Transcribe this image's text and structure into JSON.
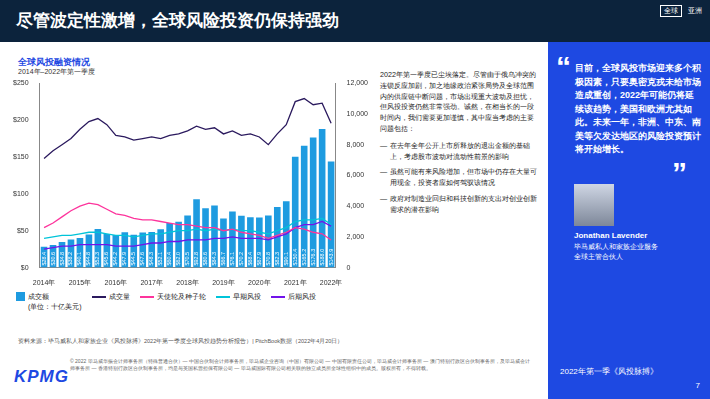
{
  "header": {
    "title": "尽管波定性激增，全球风险投资仍保持强劲",
    "region_tags": [
      "全球",
      "亚洲"
    ]
  },
  "chart_data": {
    "type": "bar",
    "title": "全球风投融资情况",
    "subtitle": "2014年–2022年第一季度",
    "ylabel": "(单位：十亿美元)",
    "categories": [
      "2014年",
      null,
      null,
      null,
      "2015年",
      null,
      null,
      null,
      "2016年",
      null,
      null,
      null,
      "2017年",
      null,
      null,
      null,
      "2018年",
      null,
      null,
      null,
      "2019年",
      null,
      null,
      null,
      "2020年",
      null,
      null,
      null,
      "2021年",
      null,
      null,
      null,
      "2022年"
    ],
    "ylim": [
      0,
      250
    ],
    "yticks": [
      {
        "value": 0,
        "label": "$0"
      },
      {
        "value": 50,
        "label": "$50"
      },
      {
        "value": 100,
        "label": "$100"
      },
      {
        "value": 150,
        "label": "$150"
      },
      {
        "value": 200,
        "label": "$200"
      },
      {
        "value": 250,
        "label": "$250"
      }
    ],
    "y2lim": [
      0,
      12000
    ],
    "y2ticks": [
      0,
      {
        "value": 2000,
        "label": "2,000"
      },
      {
        "value": 4000,
        "label": "4,000"
      },
      {
        "value": 6000,
        "label": "6,000"
      },
      {
        "value": 8000,
        "label": "8,000"
      },
      {
        "value": 10000,
        "label": "10,000"
      },
      {
        "value": 12000,
        "label": "12,000"
      }
    ],
    "grid": false,
    "legend": "bottom",
    "data_labels": true,
    "series": [
      {
        "name": "成交额",
        "type": "bar",
        "color": "#1E9BE0",
        "values": [
          28.4,
          30.6,
          34.8,
          38.2,
          40.1,
          44.8,
          52.3,
          45.6,
          44.2,
          47.9,
          44.5,
          47.6,
          48.3,
          52.1,
          60.4,
          62.0,
          70.5,
          92.8,
          80.6,
          84.3,
          66.7,
          76.1,
          70.2,
          68.4,
          67.9,
          70.8,
          82.3,
          90.1,
          150.4,
          165.2,
          176.3,
          188.0,
          143.9
        ],
        "value_labels": [
          "$28.4",
          "$30.6",
          "$34.8",
          "$38.2",
          "$40.1",
          "$44.8",
          "$52.3",
          "$45.6",
          "$44.2",
          "$47.9",
          "$44.5",
          "$47.6",
          "$48.3",
          "$52.1",
          "$60.4",
          "$62.0",
          "$70.5",
          "$92.8",
          "$80.6",
          "$84.3",
          "$66.7",
          "$76.1",
          "$70.2",
          "$68.4",
          "$67.9",
          "$70.8",
          "$82.3",
          "$90.1",
          "$150.4",
          "$165.2",
          "$176.3",
          "$188.0",
          "$143.9"
        ]
      },
      {
        "name": "成交量",
        "type": "line",
        "axis": "y2",
        "color": "#2B1A5E",
        "marker": "none",
        "values": [
          7100,
          7600,
          8000,
          8400,
          9000,
          9500,
          9700,
          9300,
          8600,
          8500,
          8300,
          8400,
          8500,
          8400,
          8600,
          8700,
          8900,
          9200,
          9000,
          9100,
          8700,
          8900,
          8600,
          8700,
          8500,
          8000,
          8700,
          9300,
          10800,
          11000,
          10600,
          10700,
          9400
        ]
      },
      {
        "name": "天使轮及种子轮",
        "type": "line",
        "axis": "y2",
        "color": "#FD349C",
        "marker": "none",
        "values": [
          2600,
          2900,
          3300,
          3700,
          4000,
          4200,
          4100,
          3800,
          3500,
          3400,
          3200,
          3100,
          3100,
          3000,
          2900,
          2800,
          2800,
          2700,
          2600,
          2600,
          2400,
          2500,
          2300,
          2200,
          2100,
          1900,
          2100,
          2300,
          2600,
          2500,
          2300,
          2200,
          1800
        ]
      },
      {
        "name": "早期风投",
        "type": "line",
        "axis": "y2",
        "color": "#00C4D9",
        "marker": "none",
        "values": [
          1900,
          2000,
          2100,
          2100,
          2200,
          2300,
          2300,
          2200,
          2100,
          2100,
          2000,
          2100,
          2200,
          2200,
          2300,
          2400,
          2400,
          2500,
          2400,
          2500,
          2400,
          2500,
          2400,
          2400,
          2300,
          2200,
          2400,
          2600,
          3000,
          3100,
          3100,
          3200,
          2800
        ]
      },
      {
        "name": "后期风投",
        "type": "line",
        "axis": "y2",
        "color": "#7213EA",
        "marker": "none",
        "values": [
          1200,
          1300,
          1400,
          1400,
          1500,
          1500,
          1500,
          1500,
          1400,
          1400,
          1400,
          1500,
          1600,
          1600,
          1700,
          1700,
          1800,
          1800,
          1800,
          1900,
          1900,
          2000,
          1900,
          1900,
          1900,
          1800,
          2000,
          2200,
          2600,
          2800,
          2800,
          3000,
          2700
        ]
      }
    ]
  },
  "commentary": {
    "intro": "2022年第一季度已尘埃落定。尽管由于俄乌冲突的连锁反应加剧，加之地缘政治紧张局势及全球范围内的供应链中断问题，市场出现重大波动及担忧，但风投投资仍然非常强劲。诚然，在相当长的一段时间内，我们需要更加谨慎，其中应当考虑的主要问题包括：",
    "bullets": [
      "在去年全年公开上市所释放的退出金额的基础上，考虑股市波动对流动性前景的影响",
      "虽然可能有来风险增加，但市场中仍存在大量可用现金，投资者应如何驾驭该情况",
      "政府对制造业回归和科技创新的支出对创业创新需求的潜在影响"
    ]
  },
  "quote": {
    "marks": [
      "“",
      "”"
    ],
    "text": "目前，全球风投市场迎来多个积极因素，只要奥密克戎未给市场造成重创，2022年可能仍将延续该趋势，美国和欧洲尤其如此。未来一年，非洲、中东、南美等欠发达地区的风险投资预计将开始增长。",
    "name": "Jonathan Lavender",
    "org": "毕马威私人和家族企业服务",
    "role": "全球主管合伙人"
  },
  "footer": {
    "source": "资料来源：毕马威私人和家族企业《风投脉搏》2022年第一季度全球风投趋势分析报告）| PitchBook数据（2022年4月20日）",
    "legal": "© 2022 毕马威华振会计师事务所（特殊普通合伙）— 中国合伙制会计师事务所，毕马威企业咨询（中国）有限公司 — 中国有限责任公司，毕马威会计师事务所 — 澳门特别行政区合伙制事务所，及毕马威会计师事务所 — 香港特别行政区合伙制事务所，均是与英国私营担保有限公司 — 毕马威国际有限公司相关联的独立成员所全球性组织中的成员。版权所有，不得转载。",
    "logo": "KPMG",
    "publication": "2022年第一季《风投脉搏》",
    "page": 7
  }
}
